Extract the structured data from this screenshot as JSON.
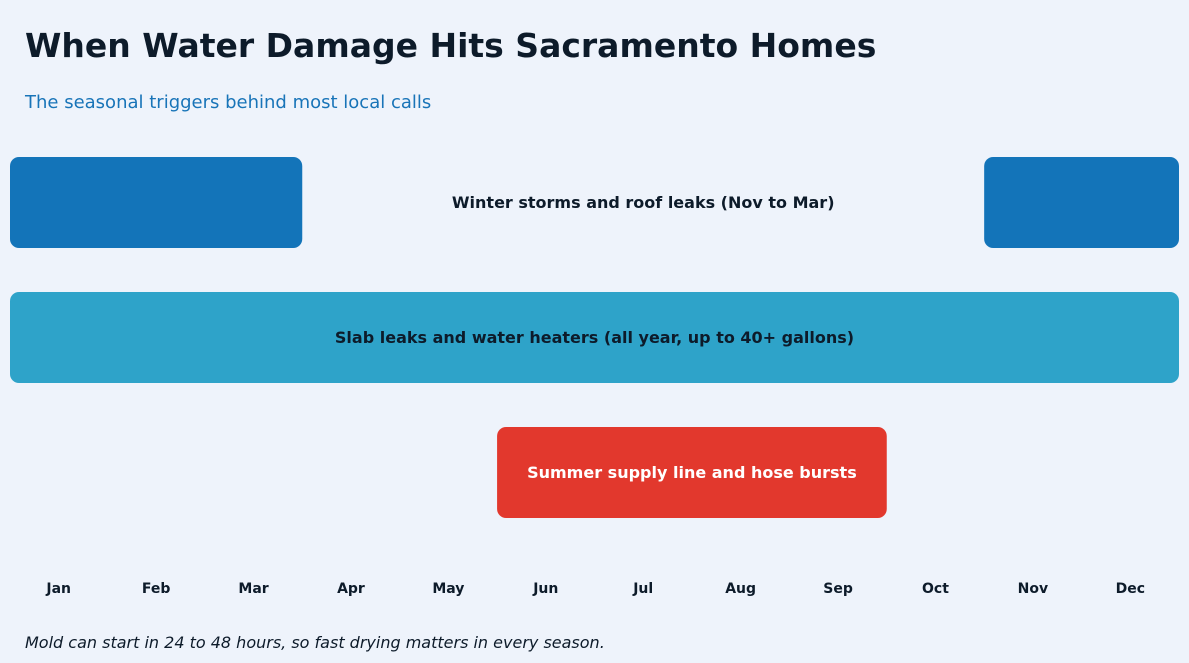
{
  "chart_data": {
    "type": "bar",
    "title": "When Water Damage Hits Sacramento Homes",
    "subtitle": "The seasonal triggers behind most local calls",
    "footnote": "Mold can start in 24 to 48 hours, so fast drying matters in every season.",
    "months": [
      "Jan",
      "Feb",
      "Mar",
      "Apr",
      "May",
      "Jun",
      "Jul",
      "Aug",
      "Sep",
      "Oct",
      "Nov",
      "Dec"
    ],
    "series": [
      {
        "label": "Winter storms and roof leaks  (Nov to Mar)",
        "color": "#1374b9",
        "label_color": "#0d1b2a",
        "segments": [
          [
            "Jan",
            "Mar"
          ],
          [
            "Nov",
            "Dec"
          ]
        ]
      },
      {
        "label": "Slab leaks and water heaters  (all year, up to 40+ gallons)",
        "color": "#2ea3c9",
        "label_color": "#0d1b2a",
        "segments": [
          [
            "Jan",
            "Dec"
          ]
        ]
      },
      {
        "label": "Summer supply line and hose bursts",
        "color": "#e2382d",
        "label_color": "#ffffff",
        "segments": [
          [
            "Jun",
            "Sep"
          ]
        ]
      }
    ]
  }
}
